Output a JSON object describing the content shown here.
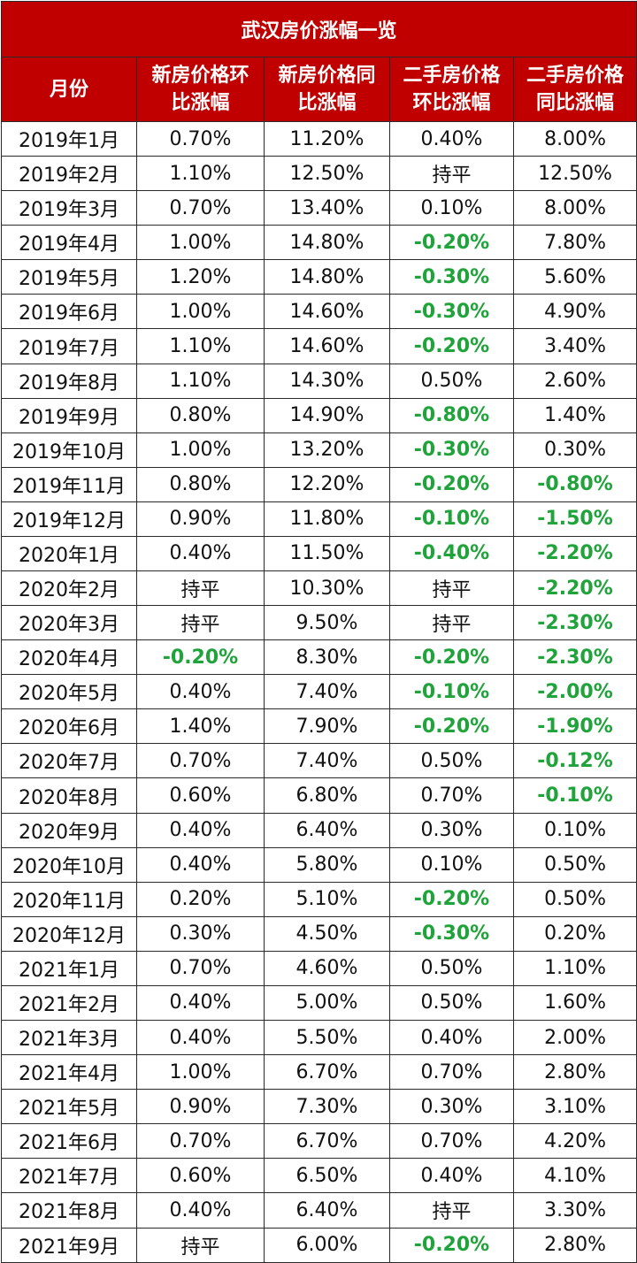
{
  "title": "武汉房价涨幅一览",
  "headers": [
    "月份",
    "新房价格环比涨幅",
    "新房价格同比涨幅",
    "二手房价格环比涨幅",
    "二手房价格同比涨幅"
  ],
  "header_lines": [
    [
      "月份"
    ],
    [
      "新房价格环",
      "比涨幅"
    ],
    [
      "新房价格同",
      "比涨幅"
    ],
    [
      "二手房价格",
      "环比涨幅"
    ],
    [
      "二手房价格",
      "同比涨幅"
    ]
  ],
  "colors": {
    "header_bg": "#c00000",
    "header_text": "#ffffff",
    "negative": "#1fa33a",
    "text": "#111111"
  },
  "chart_data": {
    "type": "table",
    "title": "武汉房价涨幅一览",
    "columns": [
      "月份",
      "新房价格环比涨幅",
      "新房价格同比涨幅",
      "二手房价格环比涨幅",
      "二手房价格同比涨幅"
    ],
    "rows": [
      [
        "2019年1月",
        "0.70%",
        "11.20%",
        "0.40%",
        "8.00%"
      ],
      [
        "2019年2月",
        "1.10%",
        "12.50%",
        "持平",
        "12.50%"
      ],
      [
        "2019年3月",
        "0.70%",
        "13.40%",
        "0.10%",
        "8.00%"
      ],
      [
        "2019年4月",
        "1.00%",
        "14.80%",
        "-0.20%",
        "7.80%"
      ],
      [
        "2019年5月",
        "1.20%",
        "14.80%",
        "-0.30%",
        "5.60%"
      ],
      [
        "2019年6月",
        "1.00%",
        "14.60%",
        "-0.30%",
        "4.90%"
      ],
      [
        "2019年7月",
        "1.10%",
        "14.60%",
        "-0.20%",
        "3.40%"
      ],
      [
        "2019年8月",
        "1.10%",
        "14.30%",
        "0.50%",
        "2.60%"
      ],
      [
        "2019年9月",
        "0.80%",
        "14.90%",
        "-0.80%",
        "1.40%"
      ],
      [
        "2019年10月",
        "1.00%",
        "13.20%",
        "-0.30%",
        "0.30%"
      ],
      [
        "2019年11月",
        "0.80%",
        "12.20%",
        "-0.20%",
        "-0.80%"
      ],
      [
        "2019年12月",
        "0.90%",
        "11.80%",
        "-0.10%",
        "-1.50%"
      ],
      [
        "2020年1月",
        "0.40%",
        "11.50%",
        "-0.40%",
        "-2.20%"
      ],
      [
        "2020年2月",
        "持平",
        "10.30%",
        "持平",
        "-2.20%"
      ],
      [
        "2020年3月",
        "持平",
        "9.50%",
        "持平",
        "-2.30%"
      ],
      [
        "2020年4月",
        "-0.20%",
        "8.30%",
        "-0.20%",
        "-2.30%"
      ],
      [
        "2020年5月",
        "0.40%",
        "7.40%",
        "-0.10%",
        "-2.00%"
      ],
      [
        "2020年6月",
        "1.40%",
        "7.90%",
        "-0.20%",
        "-1.90%"
      ],
      [
        "2020年7月",
        "0.70%",
        "7.40%",
        "0.50%",
        "-0.12%"
      ],
      [
        "2020年8月",
        "0.60%",
        "6.80%",
        "0.70%",
        "-0.10%"
      ],
      [
        "2020年9月",
        "0.40%",
        "6.40%",
        "0.30%",
        "0.10%"
      ],
      [
        "2020年10月",
        "0.40%",
        "5.80%",
        "0.10%",
        "0.50%"
      ],
      [
        "2020年11月",
        "0.20%",
        "5.10%",
        "-0.20%",
        "0.50%"
      ],
      [
        "2020年12月",
        "0.30%",
        "4.50%",
        "-0.30%",
        "0.20%"
      ],
      [
        "2021年1月",
        "0.70%",
        "4.60%",
        "0.50%",
        "1.10%"
      ],
      [
        "2021年2月",
        "0.40%",
        "5.00%",
        "0.50%",
        "1.60%"
      ],
      [
        "2021年3月",
        "0.40%",
        "5.50%",
        "0.40%",
        "2.00%"
      ],
      [
        "2021年4月",
        "1.00%",
        "6.70%",
        "0.70%",
        "2.80%"
      ],
      [
        "2021年5月",
        "0.90%",
        "7.30%",
        "0.30%",
        "3.10%"
      ],
      [
        "2021年6月",
        "0.70%",
        "6.70%",
        "0.70%",
        "4.20%"
      ],
      [
        "2021年7月",
        "0.60%",
        "6.50%",
        "0.40%",
        "4.10%"
      ],
      [
        "2021年8月",
        "0.40%",
        "6.40%",
        "持平",
        "3.30%"
      ],
      [
        "2021年9月",
        "持平",
        "6.00%",
        "-0.20%",
        "2.80%"
      ]
    ]
  }
}
